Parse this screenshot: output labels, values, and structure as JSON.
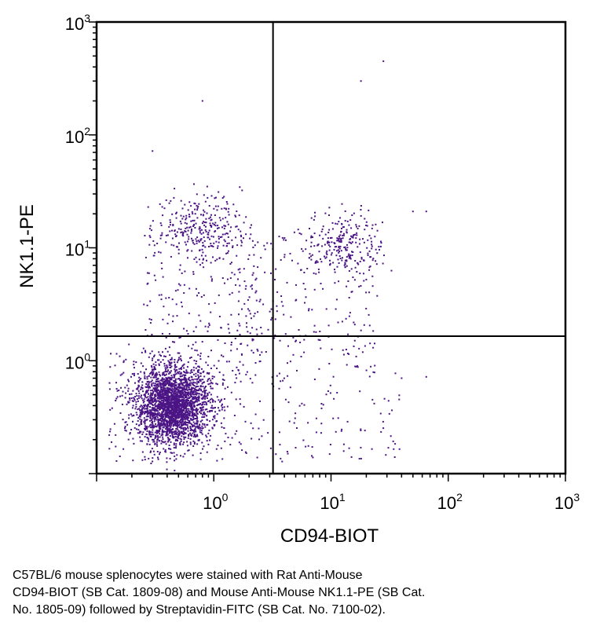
{
  "chart_data": {
    "type": "scatter",
    "xlabel": "CD94-BIOT",
    "ylabel": "NK1.1-PE",
    "x_scale": "log",
    "y_scale": "log",
    "xlim": [
      0.1,
      1000
    ],
    "ylim": [
      0.1,
      1000
    ],
    "x_ticks": [
      {
        "base": "10",
        "exp": "0",
        "value": 1
      },
      {
        "base": "10",
        "exp": "1",
        "value": 10
      },
      {
        "base": "10",
        "exp": "2",
        "value": 100
      },
      {
        "base": "10",
        "exp": "3",
        "value": 1000
      }
    ],
    "y_ticks": [
      {
        "base": "10",
        "exp": "0",
        "value": 1
      },
      {
        "base": "10",
        "exp": "1",
        "value": 10
      },
      {
        "base": "10",
        "exp": "2",
        "value": 100
      },
      {
        "base": "10",
        "exp": "3",
        "value": 1000
      }
    ],
    "quadrant_gates": {
      "x": 3.2,
      "y": 1.65
    },
    "point_color": "#4b1485",
    "clusters": [
      {
        "label": "lower-left population",
        "center": [
          0.45,
          0.4
        ],
        "spread_log": [
          0.16,
          0.17
        ],
        "count": 2600
      },
      {
        "label": "upper-left population",
        "center": [
          0.75,
          16
        ],
        "spread_log": [
          0.18,
          0.14
        ],
        "count": 260
      },
      {
        "label": "upper-right population",
        "center": [
          13,
          11
        ],
        "spread_log": [
          0.17,
          0.14
        ],
        "count": 240
      }
    ],
    "outliers": [
      [
        28,
        450
      ],
      [
        18,
        300
      ],
      [
        0.8,
        200
      ],
      [
        0.3,
        72
      ],
      [
        50,
        21
      ],
      [
        65,
        21
      ],
      [
        40,
        0.7
      ],
      [
        65,
        0.72
      ],
      [
        35,
        0.14
      ]
    ]
  },
  "caption": {
    "lines": [
      "C57BL/6 mouse splenocytes were stained with Rat Anti-Mouse",
      "CD94-BIOT (SB Cat. 1809-08) and Mouse Anti-Mouse NK1.1-PE (SB Cat.",
      "No. 1805-09) followed by Streptavidin-FITC (SB Cat. No. 7100-02)."
    ]
  }
}
